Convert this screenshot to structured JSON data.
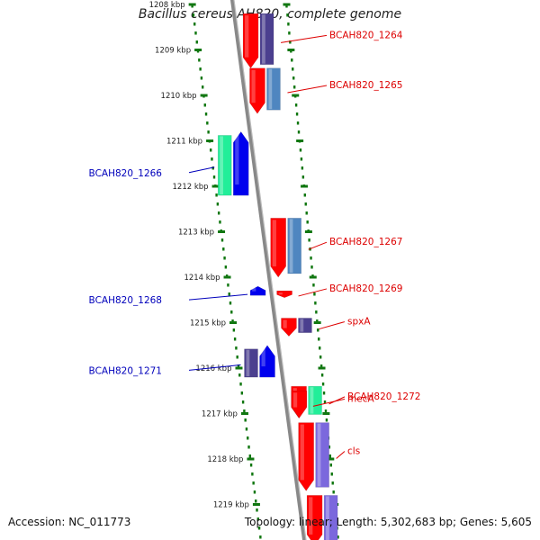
{
  "title": "Bacillus cereus AH820, complete genome",
  "footer": {
    "accession": "Accession: NC_011773",
    "topology": "Topology: linear; Length: 5,302,683 bp; Genes: 5,605"
  },
  "colors": {
    "forward_label": "#dd0000",
    "reverse_label": "#0000bb",
    "axis": "#888888",
    "ticks": "#117711",
    "cds_red": "#ff0000",
    "cds_blue": "#0000ee",
    "cds_steel": "#4f86c0",
    "cds_purple": "#4b3f8f",
    "cds_green": "#22ee99",
    "cds_lavender": "#7b68dd"
  },
  "scale": {
    "unit": "kbp",
    "ticks": [
      {
        "kbp": 1208,
        "label": "1208 kbp"
      },
      {
        "kbp": 1209,
        "label": "1209 kbp"
      },
      {
        "kbp": 1210,
        "label": "1210 kbp"
      },
      {
        "kbp": 1211,
        "label": "1211 kbp"
      },
      {
        "kbp": 1212,
        "label": "1212 kbp"
      },
      {
        "kbp": 1213,
        "label": "1213 kbp"
      },
      {
        "kbp": 1214,
        "label": "1214 kbp"
      },
      {
        "kbp": 1215,
        "label": "1215 kbp"
      },
      {
        "kbp": 1216,
        "label": "1216 kbp"
      },
      {
        "kbp": 1217,
        "label": "1217 kbp"
      },
      {
        "kbp": 1218,
        "label": "1218 kbp"
      },
      {
        "kbp": 1219,
        "label": "1219 kbp"
      }
    ]
  },
  "genes": [
    {
      "label": "BCAH820_1264",
      "strand": "+",
      "start": 1208.2,
      "end": 1209.4,
      "partner": "cds_purple"
    },
    {
      "label": "BCAH820_1265",
      "strand": "+",
      "start": 1209.4,
      "end": 1210.4,
      "partner": "cds_steel"
    },
    {
      "label": "BCAH820_1266",
      "strand": "-",
      "start": 1210.8,
      "end": 1212.2,
      "partner": "cds_green"
    },
    {
      "label": "BCAH820_1267",
      "strand": "+",
      "start": 1212.7,
      "end": 1214.0,
      "partner": "cds_steel"
    },
    {
      "label": "BCAH820_1268",
      "strand": "-",
      "start": 1214.2,
      "end": 1214.4,
      "partner": null
    },
    {
      "label": "BCAH820_1269",
      "strand": "+",
      "start": 1214.3,
      "end": 1214.45,
      "partner": null
    },
    {
      "label": "spxA",
      "strand": "+",
      "start": 1214.9,
      "end": 1215.3,
      "partner": "cds_purple"
    },
    {
      "label": "BCAH820_1271",
      "strand": "-",
      "start": 1215.5,
      "end": 1216.2,
      "partner": "cds_purple"
    },
    {
      "label": "BCAH820_1272",
      "strand": "+",
      "start": 1216.4,
      "end": 1217.1,
      "partner": "cds_green"
    },
    {
      "label": "mecA",
      "strand": "+",
      "start": 1216.5,
      "end": 1217.1,
      "partner": null
    },
    {
      "label": "cls",
      "strand": "+",
      "start": 1217.2,
      "end": 1218.7,
      "partner": "cds_lavender"
    },
    {
      "label": "",
      "strand": "+",
      "start": 1218.8,
      "end": 1219.9,
      "partner": "cds_lavender"
    }
  ]
}
